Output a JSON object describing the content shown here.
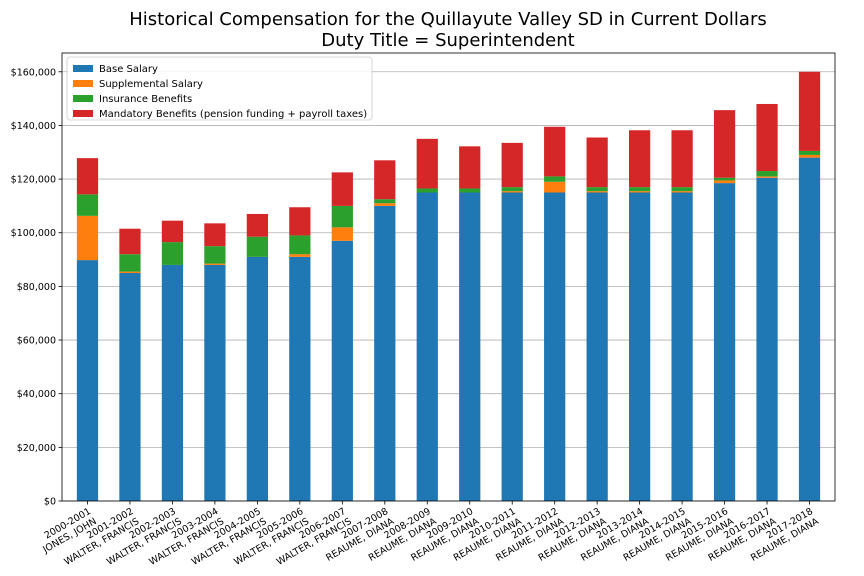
{
  "chart_data": {
    "type": "bar",
    "stacked": true,
    "title": "Historical Compensation for the Quillayute Valley SD in Current Dollars",
    "subtitle": "Duty Title = Superintendent",
    "xlabel": "",
    "ylabel": "",
    "ylim": [
      0,
      167000
    ],
    "yticks": [
      0,
      20000,
      40000,
      60000,
      80000,
      100000,
      120000,
      140000,
      160000
    ],
    "ytick_labels": [
      "$0",
      "$20,000",
      "$40,000",
      "$60,000",
      "$80,000",
      "$100,000",
      "$120,000",
      "$140,000",
      "$160,000"
    ],
    "grid": "horizontal",
    "legend_position": "top-left",
    "categories": [
      {
        "line1": "2000-2001",
        "line2": "JONES, JOHN"
      },
      {
        "line1": "2001-2002",
        "line2": "WALTER, FRANCIS"
      },
      {
        "line1": "2002-2003",
        "line2": "WALTER, FRANCIS"
      },
      {
        "line1": "2003-2004",
        "line2": "WALTER, FRANCIS"
      },
      {
        "line1": "2004-2005",
        "line2": "WALTER, FRANCIS"
      },
      {
        "line1": "2005-2006",
        "line2": "WALTER, FRANCIS"
      },
      {
        "line1": "2006-2007",
        "line2": "WALTER, FRANCIS"
      },
      {
        "line1": "2007-2008",
        "line2": "REAUME, DIANA"
      },
      {
        "line1": "2008-2009",
        "line2": "REAUME, DIANA"
      },
      {
        "line1": "2009-2010",
        "line2": "REAUME, DIANA"
      },
      {
        "line1": "2010-2011",
        "line2": "REAUME, DIANA"
      },
      {
        "line1": "2011-2012",
        "line2": "REAUME, DIANA"
      },
      {
        "line1": "2012-2013",
        "line2": "REAUME, DIANA"
      },
      {
        "line1": "2013-2014",
        "line2": "REAUME, DIANA"
      },
      {
        "line1": "2014-2015",
        "line2": "REAUME, DIANA"
      },
      {
        "line1": "2015-2016",
        "line2": "REAUME, DIANA"
      },
      {
        "line1": "2016-2017",
        "line2": "REAUME, DIANA"
      },
      {
        "line1": "2017-2018",
        "line2": "REAUME, DIANA"
      }
    ],
    "series": [
      {
        "name": "Base Salary",
        "color": "#1f77b4",
        "values": [
          89800,
          85000,
          88000,
          88000,
          91000,
          91000,
          97000,
          110000,
          115000,
          115000,
          115000,
          115000,
          115000,
          115000,
          115000,
          118500,
          120500,
          128000
        ]
      },
      {
        "name": "Supplemental Salary",
        "color": "#ff7f0e",
        "values": [
          16500,
          500,
          0,
          500,
          0,
          1000,
          5000,
          1000,
          0,
          0,
          500,
          4000,
          500,
          500,
          500,
          1000,
          500,
          1000
        ]
      },
      {
        "name": "Insurance Benefits",
        "color": "#2ca02c",
        "values": [
          8000,
          6500,
          8500,
          6500,
          7500,
          7000,
          8000,
          1500,
          1500,
          1500,
          1500,
          2000,
          1500,
          1500,
          1500,
          1000,
          2000,
          1500
        ]
      },
      {
        "name": "Mandatory Benefits (pension funding + payroll taxes)",
        "color": "#d62728",
        "values": [
          13500,
          9500,
          8000,
          8500,
          8500,
          10500,
          12500,
          14500,
          18500,
          15700,
          16500,
          18500,
          18500,
          21200,
          21200,
          25200,
          25000,
          29500
        ]
      }
    ]
  }
}
